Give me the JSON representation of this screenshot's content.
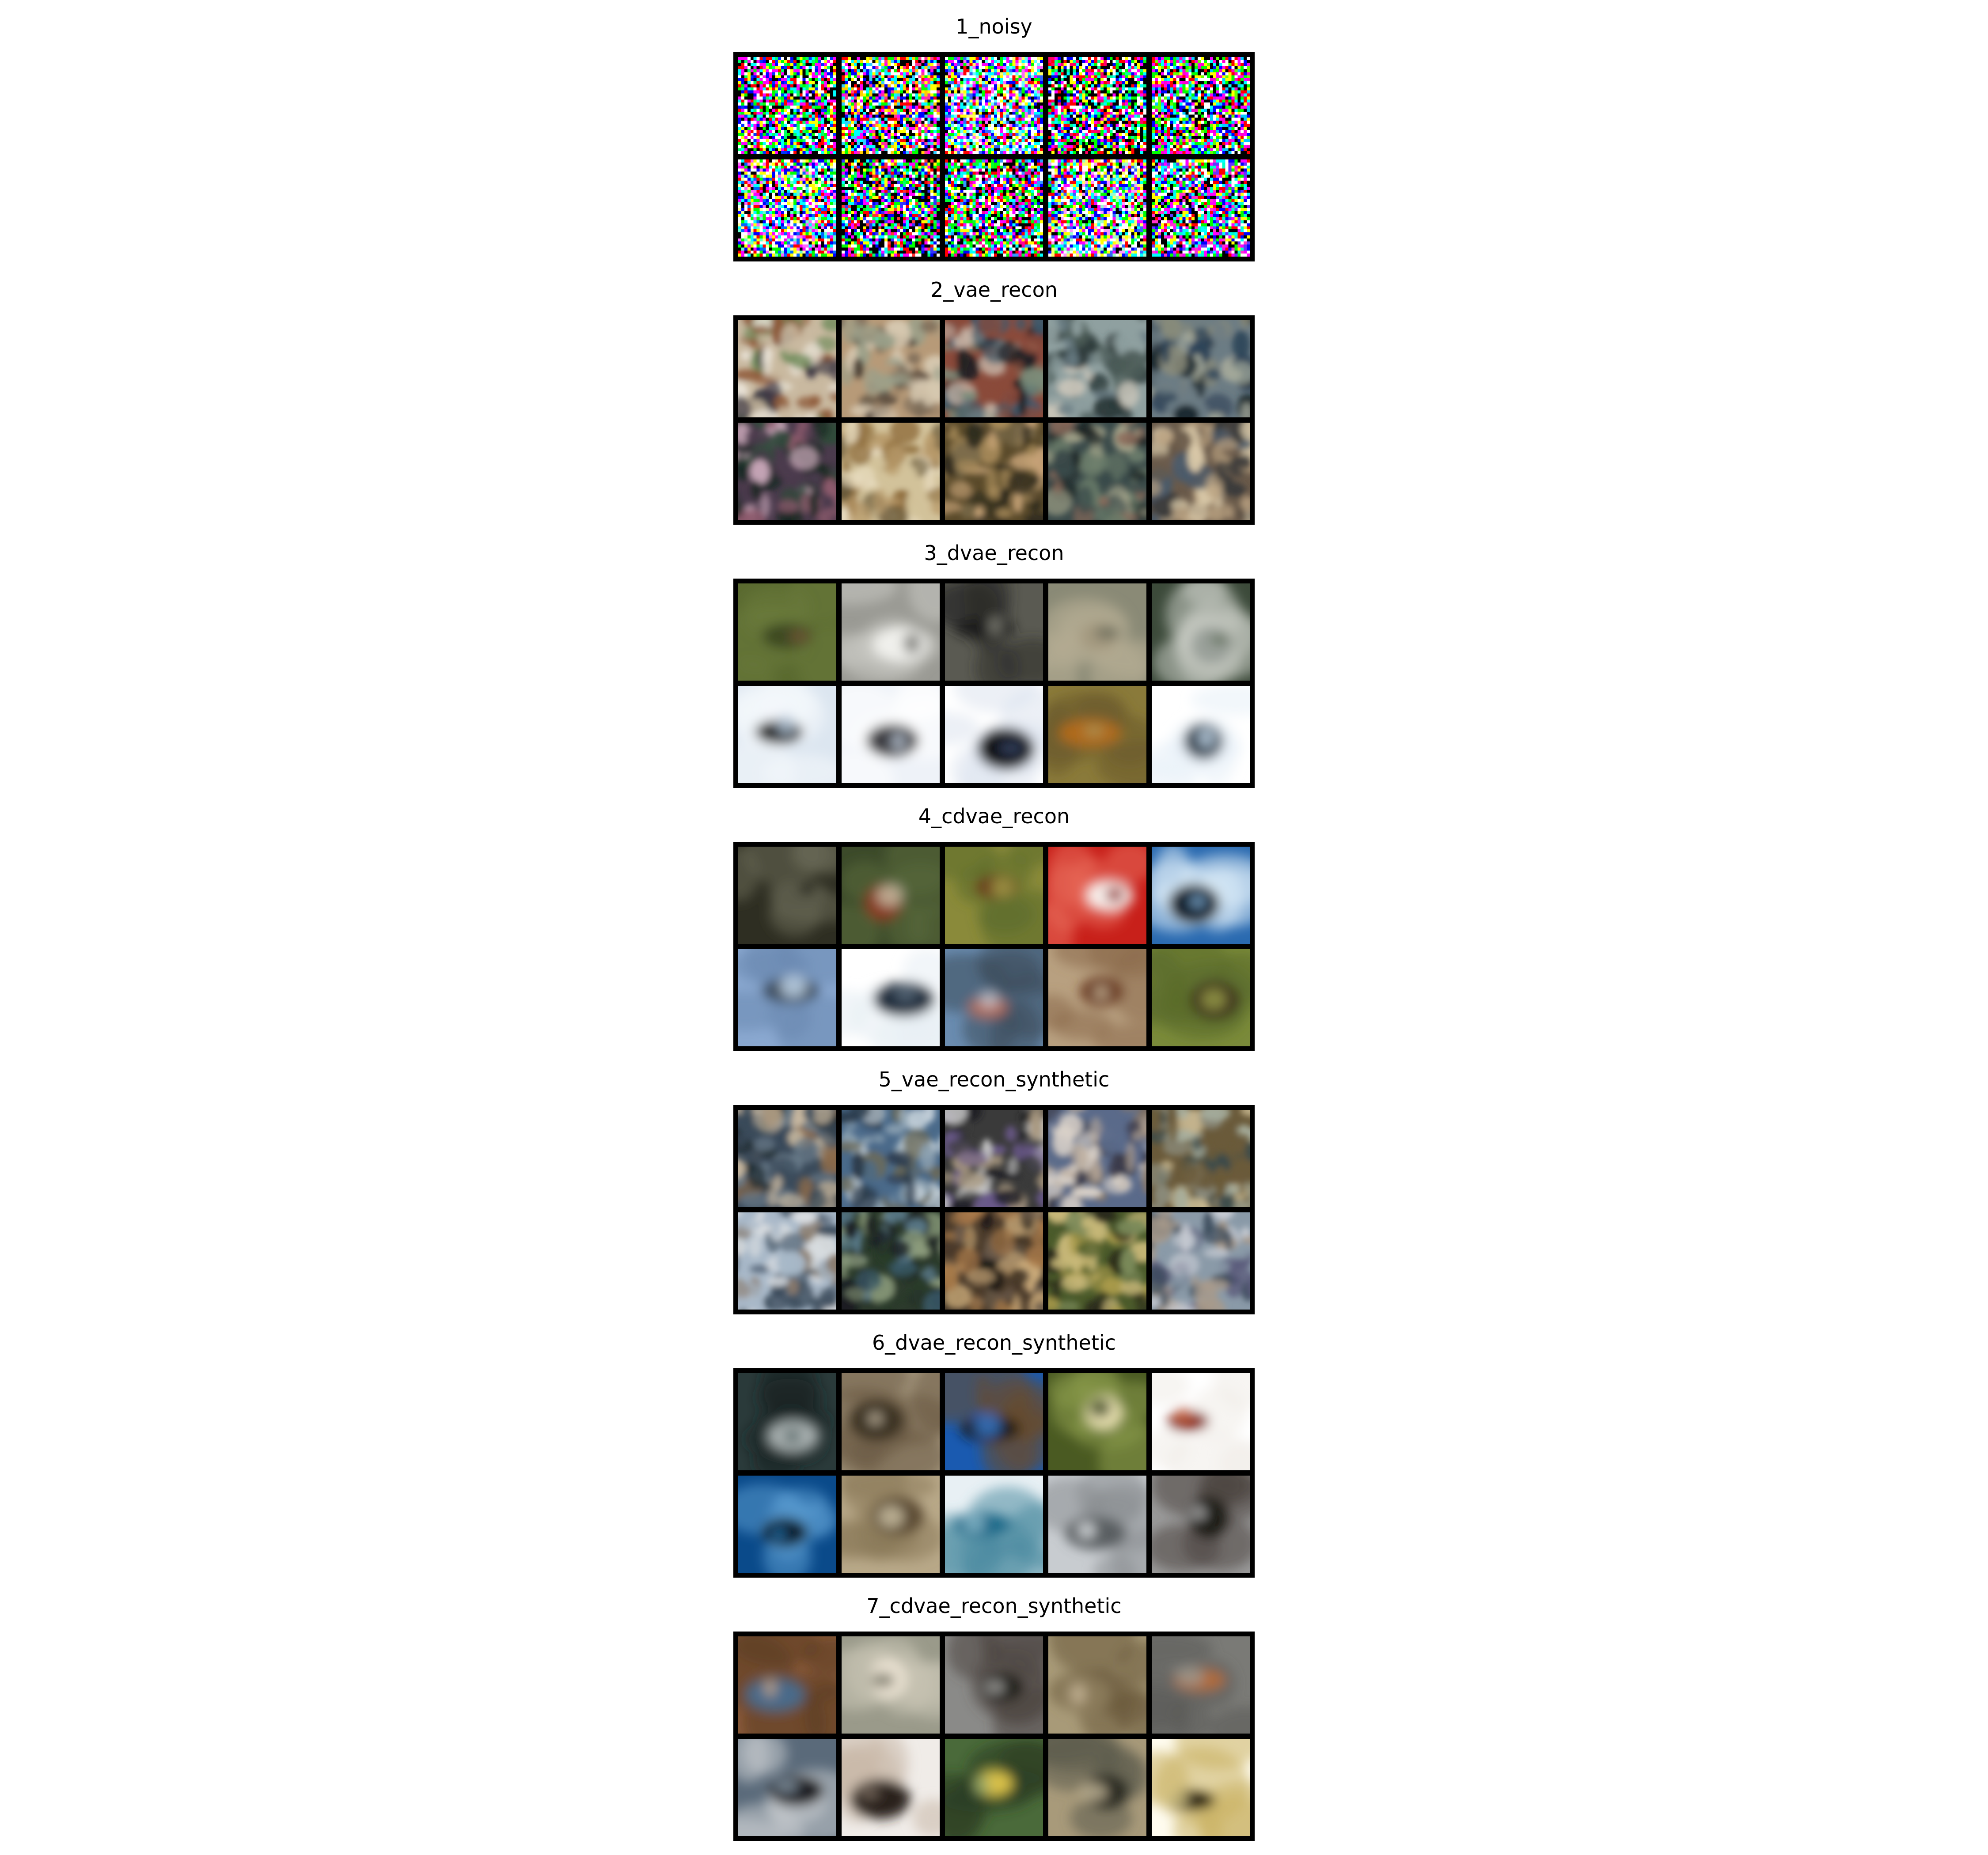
{
  "panels": [
    {
      "title": "1_noisy",
      "kind": "noise",
      "tiles": [
        {
          "desc": "random rgb noise",
          "colors": [
            "#ff00ff",
            "#00ff66",
            "#ffffff",
            "#0033ff",
            "#000000"
          ]
        },
        {
          "desc": "random rgb noise",
          "colors": [
            "#ff3399",
            "#33ccff",
            "#ffffff",
            "#000000",
            "#ffcc00"
          ]
        },
        {
          "desc": "random rgb noise, bright",
          "colors": [
            "#66ffff",
            "#ff66ff",
            "#ffffff",
            "#ffff66",
            "#3366ff"
          ]
        },
        {
          "desc": "random rgb noise, dark",
          "colors": [
            "#ff0066",
            "#00ff99",
            "#000000",
            "#000000",
            "#ffffff"
          ]
        },
        {
          "desc": "random rgb noise",
          "colors": [
            "#ff00cc",
            "#00ccff",
            "#000000",
            "#ffffff",
            "#66ff00"
          ]
        },
        {
          "desc": "random rgb noise, bright",
          "colors": [
            "#ff66ff",
            "#66ffcc",
            "#ffffff",
            "#ffff99",
            "#0066ff"
          ]
        },
        {
          "desc": "random rgb noise, dark",
          "colors": [
            "#3333ff",
            "#ff3333",
            "#000000",
            "#000000",
            "#00ff66"
          ]
        },
        {
          "desc": "random rgb noise",
          "colors": [
            "#ff0099",
            "#00ff33",
            "#000000",
            "#ffffff",
            "#3399ff"
          ]
        },
        {
          "desc": "random rgb noise, bright",
          "colors": [
            "#ffffff",
            "#ff99ff",
            "#99ffcc",
            "#3366ff",
            "#ffff66"
          ]
        },
        {
          "desc": "random rgb noise",
          "colors": [
            "#ff33cc",
            "#00ffcc",
            "#000000",
            "#ffffff",
            "#6633ff"
          ]
        }
      ]
    },
    {
      "title": "2_vae_recon",
      "kind": "mottled",
      "tiles": [
        {
          "desc": "blurry mixed patches",
          "colors": [
            "#c9b9a0",
            "#8e5a3a",
            "#6f8c5b",
            "#e8e2d6",
            "#3f3a45"
          ]
        },
        {
          "desc": "blurry mixed patches",
          "colors": [
            "#b79a78",
            "#7a6a58",
            "#d6c8b0",
            "#4b4036",
            "#9aa08a"
          ]
        },
        {
          "desc": "blurry mixed patches",
          "colors": [
            "#8a4a3a",
            "#3c5a6c",
            "#c7b6a8",
            "#1f1f24",
            "#7b8c7a"
          ]
        },
        {
          "desc": "blurry mixed patches",
          "colors": [
            "#8fa0a0",
            "#4c5c58",
            "#c8c4b8",
            "#2c3a3a",
            "#6a7d85"
          ]
        },
        {
          "desc": "blurry mixed patches",
          "colors": [
            "#6c7c84",
            "#2e4458",
            "#a3a89a",
            "#1e2a30",
            "#8a8c7a"
          ]
        },
        {
          "desc": "blurry mixed patches",
          "colors": [
            "#4a3a4c",
            "#8c5a6c",
            "#2e4a3a",
            "#c8a6b8",
            "#1a2a22"
          ]
        },
        {
          "desc": "blurry mixed patches",
          "colors": [
            "#d2c29a",
            "#8c6a3a",
            "#b89a6a",
            "#6a5a3a",
            "#e8dcc0"
          ]
        },
        {
          "desc": "blurry mixed patches",
          "colors": [
            "#5a4a2a",
            "#a88c5a",
            "#2e2a1e",
            "#c8a478",
            "#7a6a4a"
          ]
        },
        {
          "desc": "blurry mixed patches",
          "colors": [
            "#3a4a4a",
            "#6a7c6a",
            "#a4a48a",
            "#1e2626",
            "#8c6a5a"
          ]
        },
        {
          "desc": "blurry mixed patches",
          "colors": [
            "#6a5a4a",
            "#b8a080",
            "#3a3a3a",
            "#d8c8a8",
            "#4a5a6a"
          ]
        }
      ]
    },
    {
      "title": "3_dvae_recon",
      "kind": "object",
      "tiles": [
        {
          "desc": "blurry olive field with brown blob",
          "colors": [
            "#5a6a30",
            "#3c4a22",
            "#7a5a3a",
            "#6a7a3a"
          ]
        },
        {
          "desc": "white horse-like shape on gray",
          "colors": [
            "#9a9a94",
            "#f0f0ec",
            "#6a6a66",
            "#c8c8c2"
          ]
        },
        {
          "desc": "dark car-like blob",
          "colors": [
            "#5a5a52",
            "#1a1a1a",
            "#8a8a80",
            "#2e2e2a"
          ]
        },
        {
          "desc": "tan animal on gray",
          "colors": [
            "#8a8a76",
            "#a49a80",
            "#6a6a5a",
            "#b8ae96"
          ]
        },
        {
          "desc": "gray bird on green",
          "colors": [
            "#3c4a3a",
            "#9aa09a",
            "#5a6a54",
            "#c8ccc4"
          ]
        },
        {
          "desc": "black bird on pale sky",
          "colors": [
            "#dce6f0",
            "#1a1a1a",
            "#b8cce0",
            "#f4f8fc"
          ]
        },
        {
          "desc": "dark airplane on pale sky",
          "colors": [
            "#eef2f8",
            "#3a3a40",
            "#c8d4e2",
            "#ffffff"
          ]
        },
        {
          "desc": "dark ship on white",
          "colors": [
            "#ffffff",
            "#0a0a10",
            "#3a4a6a",
            "#dce4ee"
          ]
        },
        {
          "desc": "orange blob on olive",
          "colors": [
            "#8a7a3a",
            "#b06a1a",
            "#a89a5a",
            "#6a5a2a"
          ]
        },
        {
          "desc": "dark bird on white sky",
          "colors": [
            "#ffffff",
            "#2a3a4a",
            "#c8dcec",
            "#e8f0f8"
          ]
        }
      ]
    },
    {
      "title": "4_cdvae_recon",
      "kind": "object",
      "tiles": [
        {
          "desc": "dark scene with faint figure",
          "colors": [
            "#2e2e22",
            "#5a5a48",
            "#1a1a14",
            "#6a6a58"
          ]
        },
        {
          "desc": "brown horse on green",
          "colors": [
            "#3c4a2a",
            "#8a3a22",
            "#c8c0a8",
            "#5a6a3a"
          ]
        },
        {
          "desc": "brown bird on olive",
          "colors": [
            "#8a8a3a",
            "#6a3a1a",
            "#a4a04a",
            "#5a6a2a"
          ]
        },
        {
          "desc": "white shape on red",
          "colors": [
            "#c8201a",
            "#f8f0ec",
            "#8a1010",
            "#e86a5a"
          ]
        },
        {
          "desc": "dark ship on blue water",
          "colors": [
            "#2a6ab0",
            "#0a1a2a",
            "#8ab8e0",
            "#dcecf8"
          ]
        },
        {
          "desc": "small object on light blue",
          "colors": [
            "#8aa8d0",
            "#3a4a5a",
            "#c8dcf0",
            "#6a88b0"
          ]
        },
        {
          "desc": "dark car on white",
          "colors": [
            "#ffffff",
            "#1a2a3a",
            "#5a6a7a",
            "#e8eef4"
          ]
        },
        {
          "desc": "red car on blue-gray",
          "colors": [
            "#6a8cb0",
            "#b06a5a",
            "#c8c8d0",
            "#3a4a5a"
          ]
        },
        {
          "desc": "brown animal on tan",
          "colors": [
            "#b8a080",
            "#6a3a22",
            "#d8c8a8",
            "#8a6a4a"
          ]
        },
        {
          "desc": "dark horse on olive",
          "colors": [
            "#7a8a3a",
            "#3a2a1a",
            "#9aa04a",
            "#5a6a2a"
          ]
        }
      ]
    },
    {
      "title": "5_vae_recon_synthetic",
      "kind": "mottled",
      "tiles": [
        {
          "desc": "blurry mixed patches",
          "colors": [
            "#3a4a5a",
            "#c8b8a0",
            "#8a6a4a",
            "#1e2a30",
            "#6a7c8a"
          ]
        },
        {
          "desc": "blurry mixed patches",
          "colors": [
            "#4a6a8a",
            "#c8d4dc",
            "#2a3a4a",
            "#8aa0b0",
            "#6a6a5a"
          ]
        },
        {
          "desc": "blurry mixed patches",
          "colors": [
            "#3a3a3a",
            "#a89880",
            "#6a5a8a",
            "#c8c8c8",
            "#1e1e24"
          ]
        },
        {
          "desc": "blurry mixed patches",
          "colors": [
            "#5a6a8a",
            "#b8a898",
            "#3a3a4a",
            "#d8d0c8",
            "#8a7a6a"
          ]
        },
        {
          "desc": "blurry mixed patches",
          "colors": [
            "#6a5a3a",
            "#a8b0a0",
            "#3a4a4a",
            "#c8b890",
            "#8a8a7a"
          ]
        },
        {
          "desc": "blurry mixed patches",
          "colors": [
            "#a8b8c8",
            "#5a6a7a",
            "#d8dce0",
            "#3a4a5a",
            "#8a7a6a"
          ]
        },
        {
          "desc": "blurry mixed patches",
          "colors": [
            "#2a3a2a",
            "#5a7a8a",
            "#1a1e24",
            "#8a9a7a",
            "#3a5a6a"
          ]
        },
        {
          "desc": "blurry mixed patches",
          "colors": [
            "#4a3a2a",
            "#a87a4a",
            "#1e1a18",
            "#c8a878",
            "#6a5a4a"
          ]
        },
        {
          "desc": "blurry mixed patches",
          "colors": [
            "#4a5a2a",
            "#a89a4a",
            "#2a2a1a",
            "#7a8a5a",
            "#c8b878"
          ]
        },
        {
          "desc": "blurry mixed patches",
          "colors": [
            "#8a9aa8",
            "#5a5a7a",
            "#c8ccd4",
            "#3a4a5a",
            "#a89a8a"
          ]
        }
      ]
    },
    {
      "title": "6_dvae_recon_synthetic",
      "kind": "object",
      "tiles": [
        {
          "desc": "gray ship on dark teal",
          "colors": [
            "#2a3a3a",
            "#a8b0b0",
            "#5a6a6a",
            "#1a2222"
          ]
        },
        {
          "desc": "dark animal on tan",
          "colors": [
            "#a89a80",
            "#3a3022",
            "#c8bca4",
            "#6a5a44"
          ]
        },
        {
          "desc": "dark land under blue sky",
          "colors": [
            "#1a5ab0",
            "#1a1a14",
            "#3a7ad0",
            "#6a4a2a"
          ]
        },
        {
          "desc": "pale shape on olive green",
          "colors": [
            "#4a5a22",
            "#e8e0b0",
            "#2a3a14",
            "#8a9a4a"
          ]
        },
        {
          "desc": "red car on white",
          "colors": [
            "#ffffff",
            "#8a2a1a",
            "#c86a4a",
            "#f0ece8"
          ]
        },
        {
          "desc": "dark ship on blue water",
          "colors": [
            "#0a4a8a",
            "#0a1a2a",
            "#2a7ab8",
            "#5a9ad0"
          ]
        },
        {
          "desc": "brown animal on tan",
          "colors": [
            "#b8a888",
            "#5a4a32",
            "#d0c4a8",
            "#8a7a5a"
          ]
        },
        {
          "desc": "teal boat on white",
          "colors": [
            "#e8f0f4",
            "#1a6a8a",
            "#8ab8c8",
            "#4a8aa0"
          ]
        },
        {
          "desc": "gray shape on light gray",
          "colors": [
            "#c8ccd0",
            "#5a5e62",
            "#e8ecf0",
            "#8a8e92"
          ]
        },
        {
          "desc": "dark horse on gray",
          "colors": [
            "#9a9a9a",
            "#1e1a18",
            "#c8c8c8",
            "#4a4440"
          ]
        }
      ]
    },
    {
      "title": "7_cdvae_recon_synthetic",
      "kind": "object",
      "tiles": [
        {
          "desc": "brown and blue blob",
          "colors": [
            "#8a5a3a",
            "#4a6a8a",
            "#c8a888",
            "#5a3a22"
          ]
        },
        {
          "desc": "pale animal on gray",
          "colors": [
            "#9a9a8a",
            "#e8e0d0",
            "#6a6a5a",
            "#c8c4b4"
          ]
        },
        {
          "desc": "dark animal on gray",
          "colors": [
            "#8a8a88",
            "#1e1a18",
            "#b8b8b4",
            "#4a4440"
          ]
        },
        {
          "desc": "tan blur",
          "colors": [
            "#a89a78",
            "#8a7a5a",
            "#c8b898",
            "#6a5a3a"
          ]
        },
        {
          "desc": "orange animal on gray",
          "colors": [
            "#7a7a76",
            "#b06a3a",
            "#9a9a94",
            "#5a5a56"
          ]
        },
        {
          "desc": "dark figure on gray-blue",
          "colors": [
            "#5a6a7a",
            "#1a1e24",
            "#8a9aa8",
            "#c8ccd0"
          ]
        },
        {
          "desc": "dark animal on white",
          "colors": [
            "#f0ece8",
            "#2a221e",
            "#8a7a6a",
            "#c8b8a8"
          ]
        },
        {
          "desc": "yellow vehicle on green",
          "colors": [
            "#4a6a3a",
            "#d8c04a",
            "#8aa06a",
            "#2a3a22"
          ]
        },
        {
          "desc": "dark truck on tan",
          "colors": [
            "#a89a7a",
            "#2a2a22",
            "#c8bc9c",
            "#5a5a4a"
          ]
        },
        {
          "desc": "black animal on white",
          "colors": [
            "#fffcf0",
            "#1a1610",
            "#e8d890",
            "#c8b060"
          ]
        }
      ]
    }
  ]
}
